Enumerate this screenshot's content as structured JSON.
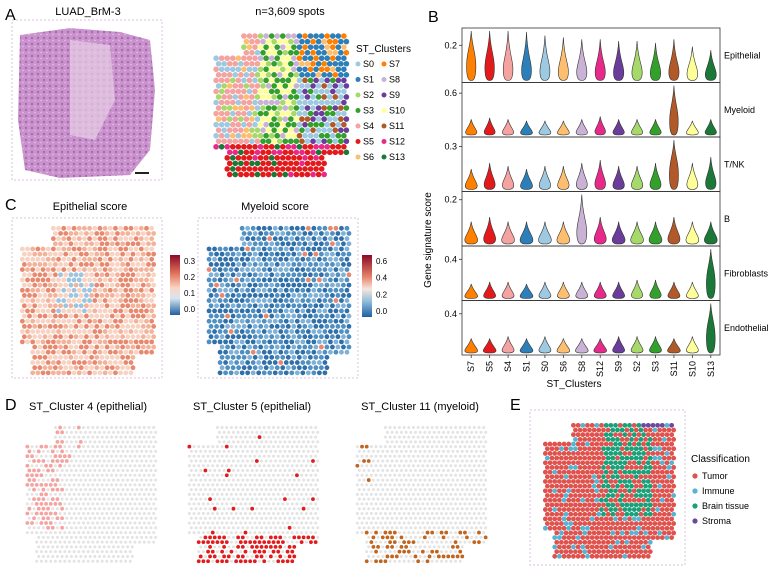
{
  "panels": {
    "A": {
      "letter": "A",
      "he_title": "LUAD_BrM-3",
      "spots_title": "n=3,609 spots",
      "legend_title": "ST_Clusters"
    },
    "B": {
      "letter": "B"
    },
    "C": {
      "letter": "C",
      "left_title": "Epithelial score",
      "right_title": "Myeloid score",
      "left_ticks": [
        "0.3",
        "0.2",
        "0.1",
        "0.0"
      ],
      "right_ticks": [
        "0.6",
        "0.4",
        "0.2",
        "0.0"
      ]
    },
    "D": {
      "letter": "D",
      "titles": [
        "ST_Cluster 4 (epithelial)",
        "ST_Cluster 5 (epithelial)",
        "ST_Cluster 11 (myeloid)"
      ]
    },
    "E": {
      "letter": "E",
      "legend_title": "Classification",
      "classes": [
        "Tumor",
        "Immune",
        "Brain tissue",
        "Stroma"
      ]
    }
  },
  "clusters": [
    {
      "name": "S0",
      "color": "#9ecae1"
    },
    {
      "name": "S1",
      "color": "#2c7fb8"
    },
    {
      "name": "S2",
      "color": "#a6d96a"
    },
    {
      "name": "S3",
      "color": "#33a02c"
    },
    {
      "name": "S4",
      "color": "#f4a3a0"
    },
    {
      "name": "S5",
      "color": "#e31a1c"
    },
    {
      "name": "S6",
      "color": "#fdbf6f"
    },
    {
      "name": "S7",
      "color": "#ff7f00"
    },
    {
      "name": "S8",
      "color": "#cab2d6"
    },
    {
      "name": "S9",
      "color": "#6a3d9a"
    },
    {
      "name": "S10",
      "color": "#ffff99"
    },
    {
      "name": "S11",
      "color": "#b15928"
    },
    {
      "name": "S12",
      "color": "#e7298a"
    },
    {
      "name": "S13",
      "color": "#1b7837"
    }
  ],
  "class_colors": {
    "Tumor": "#e0524d",
    "Immune": "#56b4d3",
    "Brain tissue": "#1aa179",
    "Stroma": "#6b4a9b"
  },
  "chart_data": {
    "type": "violin",
    "title": "",
    "xlabel": "ST_Clusters",
    "ylabel": "Gene signature score",
    "categories": [
      "S7",
      "S5",
      "S4",
      "S1",
      "S0",
      "S6",
      "S8",
      "S12",
      "S9",
      "S2",
      "S3",
      "S11",
      "S10",
      "S13"
    ],
    "series": [
      {
        "name": "Epithelial",
        "ytick": "0.2",
        "ylim": [
          0.0,
          0.28
        ],
        "medians": [
          0.16,
          0.14,
          0.12,
          0.11,
          0.1,
          0.095,
          0.09,
          0.09,
          0.085,
          0.085,
          0.08,
          0.09,
          0.07,
          0.06
        ]
      },
      {
        "name": "Myeloid",
        "ytick": "0.6",
        "ylim": [
          0.0,
          0.7
        ],
        "medians": [
          0.05,
          0.06,
          0.05,
          0.04,
          0.04,
          0.04,
          0.05,
          0.07,
          0.05,
          0.05,
          0.05,
          0.38,
          0.04,
          0.05
        ]
      },
      {
        "name": "T/NK",
        "ytick": "0.3",
        "ylim": [
          0.0,
          0.34
        ],
        "medians": [
          0.04,
          0.06,
          0.05,
          0.04,
          0.05,
          0.05,
          0.06,
          0.07,
          0.05,
          0.05,
          0.06,
          0.2,
          0.06,
          0.08
        ]
      },
      {
        "name": "B",
        "ytick": "0.2",
        "ylim": [
          0.0,
          0.22
        ],
        "medians": [
          0.03,
          0.04,
          0.03,
          0.03,
          0.03,
          0.03,
          0.1,
          0.04,
          0.03,
          0.03,
          0.03,
          0.04,
          0.03,
          0.03
        ]
      },
      {
        "name": "Fibroblasts",
        "ytick": "0.4",
        "ylim": [
          0.0,
          0.5
        ],
        "medians": [
          0.03,
          0.04,
          0.04,
          0.03,
          0.04,
          0.04,
          0.04,
          0.04,
          0.04,
          0.05,
          0.05,
          0.04,
          0.04,
          0.3
        ]
      },
      {
        "name": "Endothelial",
        "ytick": "0.4",
        "ylim": [
          0.0,
          0.5
        ],
        "medians": [
          0.03,
          0.03,
          0.04,
          0.03,
          0.04,
          0.03,
          0.03,
          0.03,
          0.04,
          0.04,
          0.04,
          0.03,
          0.04,
          0.3
        ]
      }
    ]
  }
}
